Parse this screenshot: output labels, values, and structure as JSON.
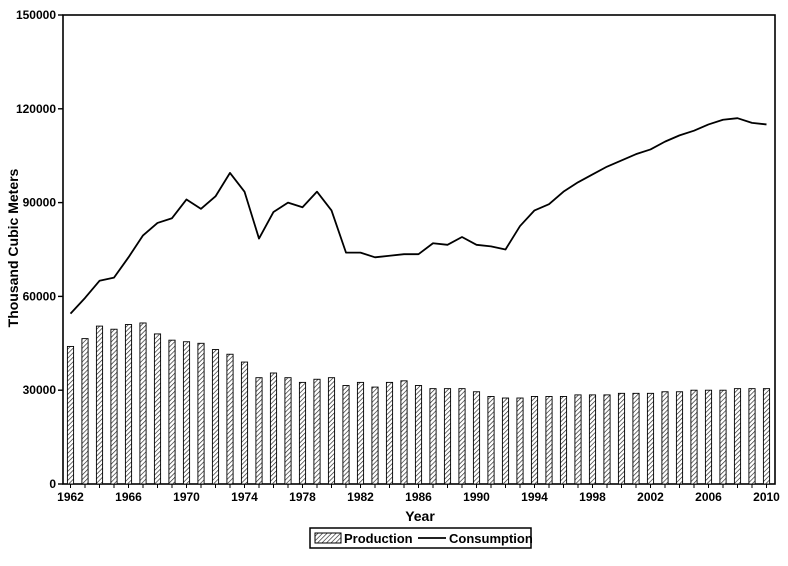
{
  "chart_data": {
    "type": "bar+line",
    "xlabel": "Year",
    "ylabel": "Thousand Cubic Meters",
    "ylim": [
      0,
      150000
    ],
    "yticks": [
      0,
      30000,
      60000,
      90000,
      120000,
      150000
    ],
    "ytick_labels": [
      "0",
      "30000",
      "60000",
      "90000",
      "120000",
      "150000"
    ],
    "xticks": [
      1962,
      1966,
      1970,
      1974,
      1978,
      1982,
      1986,
      1990,
      1994,
      1998,
      2002,
      2006,
      2010
    ],
    "xtick_labels": [
      "1962",
      "1966",
      "1970",
      "1974",
      "1978",
      "1982",
      "1986",
      "1990",
      "1994",
      "1998",
      "2002",
      "2006",
      "2010"
    ],
    "legend_position": "bottom-center",
    "grid": false,
    "categories": [
      1962,
      1963,
      1964,
      1965,
      1966,
      1967,
      1968,
      1969,
      1970,
      1971,
      1972,
      1973,
      1974,
      1975,
      1976,
      1977,
      1978,
      1979,
      1980,
      1981,
      1982,
      1983,
      1984,
      1985,
      1986,
      1987,
      1988,
      1989,
      1990,
      1991,
      1992,
      1993,
      1994,
      1995,
      1996,
      1997,
      1998,
      1999,
      2000,
      2001,
      2002,
      2003,
      2004,
      2005,
      2006,
      2007,
      2008,
      2009,
      2010
    ],
    "series": [
      {
        "name": "Production",
        "kind": "bar",
        "pattern": "diagonal-hatch",
        "values": [
          44000,
          46500,
          50500,
          49500,
          51000,
          51500,
          48000,
          46000,
          45500,
          45000,
          43000,
          41500,
          39000,
          34000,
          35500,
          34000,
          32500,
          33500,
          34000,
          31500,
          32500,
          31000,
          32500,
          33000,
          31500,
          30500,
          30500,
          30500,
          29500,
          28000,
          27500,
          27500,
          28000,
          28000,
          28000,
          28500,
          28500,
          28500,
          29000,
          29000,
          29000,
          29500,
          29500,
          30000,
          30000,
          30000,
          30500,
          30500,
          30500
        ]
      },
      {
        "name": "Consumption",
        "kind": "line",
        "values": [
          54500,
          59500,
          65000,
          66000,
          72500,
          79500,
          83500,
          85000,
          91000,
          88000,
          92000,
          99500,
          93500,
          78500,
          87000,
          90000,
          88500,
          93500,
          87500,
          74000,
          74000,
          72500,
          73000,
          73500,
          73500,
          77000,
          76500,
          79000,
          76500,
          76000,
          75000,
          82500,
          87500,
          89500,
          93500,
          96500,
          99000,
          101500,
          103500,
          105500,
          107000,
          109500,
          111500,
          113000,
          115000,
          116500,
          117000,
          115500,
          115000
        ]
      }
    ]
  }
}
